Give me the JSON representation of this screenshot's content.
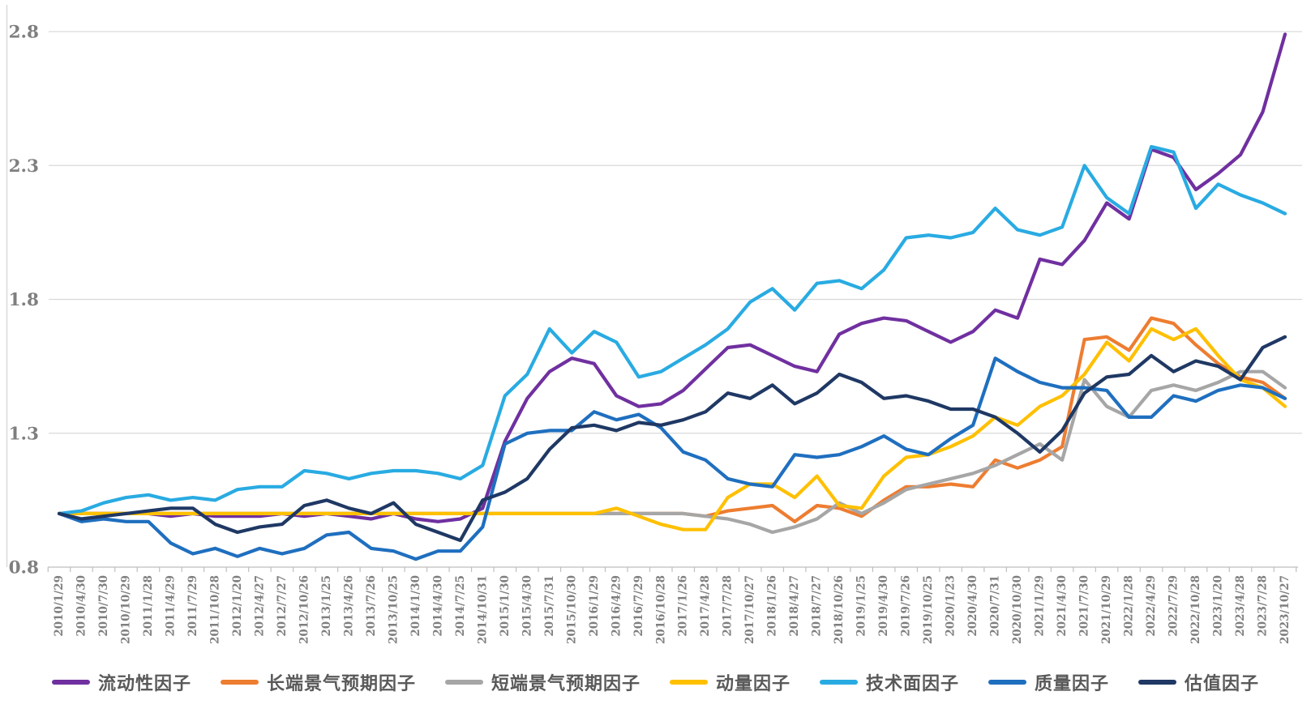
{
  "chart_data": {
    "type": "line",
    "title": "",
    "xlabel": "",
    "ylabel": "",
    "ylim": [
      0.8,
      2.8
    ],
    "y_ticks": [
      "0.8",
      "1.3",
      "1.8",
      "2.3",
      "2.8"
    ],
    "grid": "horizontal",
    "legend_position": "bottom",
    "colors": {
      "background": "#ffffff",
      "grid_line": "#d9d9d9",
      "axis_line": "#bfbfbf",
      "axis_text": "#7f7f7f",
      "legend_text": "#595959"
    },
    "categories": [
      "2010/1/29",
      "2010/4/30",
      "2010/7/30",
      "2010/10/29",
      "2011/1/28",
      "2011/4/29",
      "2011/7/29",
      "2011/10/28",
      "2012/1/20",
      "2012/4/27",
      "2012/7/27",
      "2012/10/26",
      "2013/1/25",
      "2013/4/26",
      "2013/7/26",
      "2013/10/25",
      "2014/1/30",
      "2014/4/30",
      "2014/7/25",
      "2014/10/31",
      "2015/1/30",
      "2015/4/30",
      "2015/7/31",
      "2015/10/30",
      "2016/1/29",
      "2016/4/29",
      "2016/7/29",
      "2016/10/28",
      "2017/1/26",
      "2017/4/28",
      "2017/7/28",
      "2017/10/27",
      "2018/1/26",
      "2018/4/27",
      "2018/7/27",
      "2018/10/26",
      "2019/1/25",
      "2019/4/30",
      "2019/7/26",
      "2019/10/25",
      "2020/1/23",
      "2020/4/30",
      "2020/7/31",
      "2020/10/30",
      "2021/1/29",
      "2021/4/30",
      "2021/7/30",
      "2021/10/29",
      "2022/1/28",
      "2022/4/29",
      "2022/7/29",
      "2022/10/28",
      "2023/1/20",
      "2023/4/28",
      "2023/7/28",
      "2023/10/27"
    ],
    "series": [
      {
        "name": "流动性因子",
        "key": "liquidity-factor",
        "color": "#7030a0",
        "values": [
          1.0,
          1.0,
          1.0,
          1.0,
          1.0,
          0.99,
          1.0,
          0.99,
          0.99,
          0.99,
          1.0,
          0.99,
          1.0,
          0.99,
          0.98,
          1.0,
          0.98,
          0.97,
          0.98,
          1.02,
          1.27,
          1.43,
          1.53,
          1.58,
          1.56,
          1.44,
          1.4,
          1.41,
          1.46,
          1.54,
          1.62,
          1.63,
          1.59,
          1.55,
          1.53,
          1.67,
          1.71,
          1.73,
          1.72,
          1.68,
          1.64,
          1.68,
          1.76,
          1.73,
          1.95,
          1.93,
          2.02,
          2.16,
          2.1,
          2.36,
          2.33,
          2.21,
          2.27,
          2.34,
          2.5,
          2.79
        ]
      },
      {
        "name": "长端景气预期因子",
        "key": "long-term-sentiment-factor",
        "color": "#ed7d31",
        "values": [
          1.0,
          1.0,
          1.0,
          1.0,
          1.0,
          1.0,
          1.0,
          1.0,
          1.0,
          1.0,
          1.0,
          1.0,
          1.0,
          1.0,
          1.0,
          1.0,
          1.0,
          1.0,
          1.0,
          1.0,
          1.0,
          1.0,
          1.0,
          1.0,
          1.0,
          1.0,
          1.0,
          1.0,
          1.0,
          0.99,
          1.01,
          1.02,
          1.03,
          0.97,
          1.03,
          1.02,
          0.99,
          1.05,
          1.1,
          1.1,
          1.11,
          1.1,
          1.2,
          1.17,
          1.2,
          1.25,
          1.65,
          1.66,
          1.61,
          1.73,
          1.71,
          1.63,
          1.56,
          1.51,
          1.49,
          1.43
        ]
      },
      {
        "name": "短端景气预期因子",
        "key": "short-term-sentiment-factor",
        "color": "#a6a6a6",
        "values": [
          1.0,
          1.0,
          1.0,
          1.0,
          1.0,
          1.0,
          1.0,
          1.0,
          1.0,
          1.0,
          1.0,
          1.0,
          1.0,
          1.0,
          1.0,
          1.0,
          1.0,
          1.0,
          1.0,
          1.0,
          1.0,
          1.0,
          1.0,
          1.0,
          1.0,
          1.0,
          1.0,
          1.0,
          1.0,
          0.99,
          0.98,
          0.96,
          0.93,
          0.95,
          0.98,
          1.04,
          1.0,
          1.04,
          1.09,
          1.11,
          1.13,
          1.15,
          1.18,
          1.22,
          1.26,
          1.2,
          1.5,
          1.4,
          1.36,
          1.46,
          1.48,
          1.46,
          1.49,
          1.53,
          1.53,
          1.47
        ]
      },
      {
        "name": "动量因子",
        "key": "momentum-factor",
        "color": "#ffc000",
        "values": [
          1.0,
          1.0,
          1.0,
          1.0,
          1.0,
          1.0,
          1.0,
          1.0,
          1.0,
          1.0,
          1.0,
          1.0,
          1.0,
          1.0,
          1.0,
          1.0,
          1.0,
          1.0,
          1.0,
          1.0,
          1.0,
          1.0,
          1.0,
          1.0,
          1.0,
          1.02,
          0.99,
          0.96,
          0.94,
          0.94,
          1.06,
          1.11,
          1.11,
          1.06,
          1.14,
          1.03,
          1.02,
          1.14,
          1.21,
          1.22,
          1.25,
          1.29,
          1.36,
          1.33,
          1.4,
          1.44,
          1.52,
          1.64,
          1.57,
          1.69,
          1.65,
          1.69,
          1.59,
          1.5,
          1.47,
          1.4
        ]
      },
      {
        "name": "技术面因子",
        "key": "technical-factor",
        "color": "#29abe2",
        "values": [
          1.0,
          1.01,
          1.04,
          1.06,
          1.07,
          1.05,
          1.06,
          1.05,
          1.09,
          1.1,
          1.1,
          1.16,
          1.15,
          1.13,
          1.15,
          1.16,
          1.16,
          1.15,
          1.13,
          1.18,
          1.44,
          1.52,
          1.69,
          1.6,
          1.68,
          1.64,
          1.51,
          1.53,
          1.58,
          1.63,
          1.69,
          1.79,
          1.84,
          1.76,
          1.86,
          1.87,
          1.84,
          1.91,
          2.03,
          2.04,
          2.03,
          2.05,
          2.14,
          2.06,
          2.04,
          2.07,
          2.3,
          2.18,
          2.12,
          2.37,
          2.35,
          2.14,
          2.23,
          2.19,
          2.16,
          2.12
        ]
      },
      {
        "name": "质量因子",
        "key": "quality-factor",
        "color": "#1f6fbf",
        "values": [
          1.0,
          0.97,
          0.98,
          0.97,
          0.97,
          0.89,
          0.85,
          0.87,
          0.84,
          0.87,
          0.85,
          0.87,
          0.92,
          0.93,
          0.87,
          0.86,
          0.83,
          0.86,
          0.86,
          0.95,
          1.26,
          1.3,
          1.31,
          1.31,
          1.38,
          1.35,
          1.37,
          1.32,
          1.23,
          1.2,
          1.13,
          1.11,
          1.1,
          1.22,
          1.21,
          1.22,
          1.25,
          1.29,
          1.24,
          1.22,
          1.28,
          1.33,
          1.58,
          1.53,
          1.49,
          1.47,
          1.47,
          1.46,
          1.36,
          1.36,
          1.44,
          1.42,
          1.46,
          1.48,
          1.47,
          1.43
        ]
      },
      {
        "name": "估值因子",
        "key": "valuation-factor",
        "color": "#1f3864",
        "values": [
          1.0,
          0.98,
          0.99,
          1.0,
          1.01,
          1.02,
          1.02,
          0.96,
          0.93,
          0.95,
          0.96,
          1.03,
          1.05,
          1.02,
          1.0,
          1.04,
          0.96,
          0.93,
          0.9,
          1.05,
          1.08,
          1.13,
          1.24,
          1.32,
          1.33,
          1.31,
          1.34,
          1.33,
          1.35,
          1.38,
          1.45,
          1.43,
          1.48,
          1.41,
          1.45,
          1.52,
          1.49,
          1.43,
          1.44,
          1.42,
          1.39,
          1.39,
          1.36,
          1.3,
          1.23,
          1.31,
          1.45,
          1.51,
          1.52,
          1.59,
          1.53,
          1.57,
          1.55,
          1.5,
          1.62,
          1.66
        ]
      }
    ]
  }
}
